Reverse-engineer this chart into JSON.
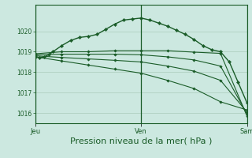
{
  "bg_color": "#cce8e0",
  "grid_color": "#aaccbb",
  "line_color": "#1a5c28",
  "xlabel": "Pression niveau de la mer( hPa )",
  "xlabel_fontsize": 8,
  "tick_label_color": "#1a5c28",
  "day_labels": [
    "Jeu",
    "Ven",
    "Sam"
  ],
  "day_positions": [
    0,
    24,
    48
  ],
  "ylim": [
    1015.5,
    1021.3
  ],
  "yticks": [
    1016,
    1017,
    1018,
    1019,
    1020
  ],
  "total_hours": 48,
  "series_main": {
    "x": [
      0,
      1,
      2,
      3,
      4,
      6,
      8,
      10,
      12,
      14,
      16,
      18,
      20,
      22,
      24,
      26,
      28,
      30,
      32,
      34,
      36,
      38,
      40,
      42,
      44,
      46,
      48
    ],
    "y": [
      1018.75,
      1018.7,
      1018.75,
      1018.85,
      1019.0,
      1019.3,
      1019.55,
      1019.7,
      1019.75,
      1019.85,
      1020.1,
      1020.35,
      1020.55,
      1020.6,
      1020.65,
      1020.55,
      1020.4,
      1020.25,
      1020.05,
      1019.85,
      1019.6,
      1019.3,
      1019.1,
      1019.0,
      1018.5,
      1017.5,
      1016.5
    ]
  },
  "series_flat1": {
    "x": [
      0,
      6,
      12,
      18,
      24,
      30,
      36,
      42,
      48
    ],
    "y": [
      1018.9,
      1019.0,
      1019.0,
      1019.05,
      1019.05,
      1019.05,
      1018.98,
      1018.92,
      1015.85
    ]
  },
  "series_flat2": {
    "x": [
      0,
      6,
      12,
      18,
      24,
      30,
      36,
      42,
      48
    ],
    "y": [
      1018.85,
      1018.88,
      1018.88,
      1018.88,
      1018.85,
      1018.75,
      1018.6,
      1018.3,
      1015.95
    ]
  },
  "series_flat3": {
    "x": [
      0,
      6,
      12,
      18,
      24,
      30,
      36,
      42,
      48
    ],
    "y": [
      1018.8,
      1018.72,
      1018.65,
      1018.58,
      1018.5,
      1018.3,
      1018.05,
      1017.6,
      1016.05
    ]
  },
  "series_flat4": {
    "x": [
      0,
      6,
      12,
      18,
      24,
      30,
      36,
      42,
      48
    ],
    "y": [
      1018.75,
      1018.55,
      1018.35,
      1018.15,
      1017.95,
      1017.6,
      1017.2,
      1016.55,
      1016.15
    ]
  },
  "marker": "D",
  "markersize_main": 2.2,
  "markersize_flat": 1.8,
  "linewidth_main": 1.0,
  "linewidth_flat": 0.8
}
